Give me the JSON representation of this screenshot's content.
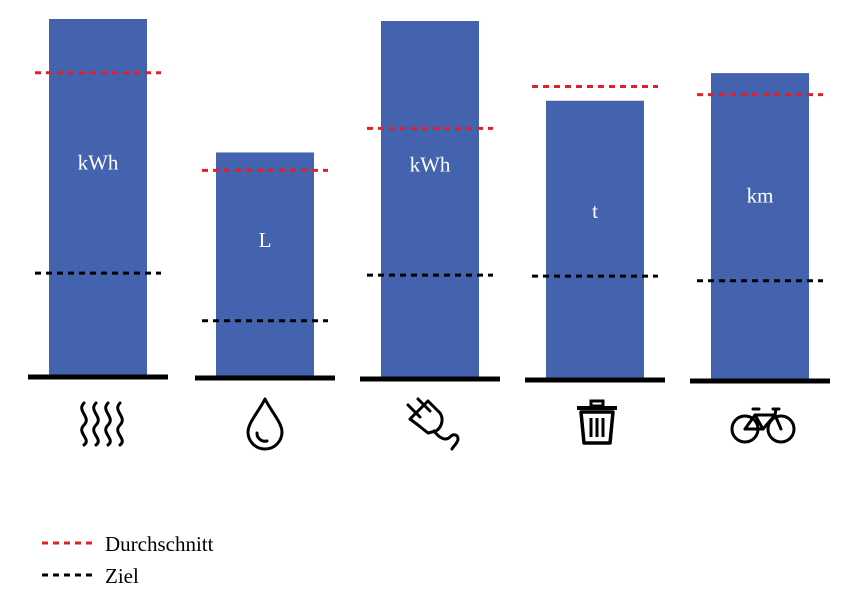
{
  "chart_data": {
    "type": "bar",
    "categories": [
      "Heizung",
      "Wasser",
      "Strom",
      "Abfall",
      "Fahrrad"
    ],
    "category_icons": [
      "heat-waves-icon",
      "water-drop-icon",
      "plug-icon",
      "trash-can-icon",
      "bicycle-icon"
    ],
    "units": [
      "kWh",
      "L",
      "kWh",
      "t",
      "km"
    ],
    "values": [
      100,
      63,
      100,
      78,
      86
    ],
    "average": [
      85,
      58,
      70,
      82,
      80
    ],
    "target": [
      29,
      16,
      29,
      29,
      28
    ],
    "ylim": [
      0,
      100
    ],
    "legend": [
      {
        "label": "Durchschnitt",
        "color": "#e0202a",
        "style": "dotted"
      },
      {
        "label": "Ziel",
        "color": "#000000",
        "style": "dotted"
      }
    ],
    "legend_position": "bottom-left",
    "colors": {
      "bar": "#4463ae",
      "baseline": "#000000"
    }
  }
}
